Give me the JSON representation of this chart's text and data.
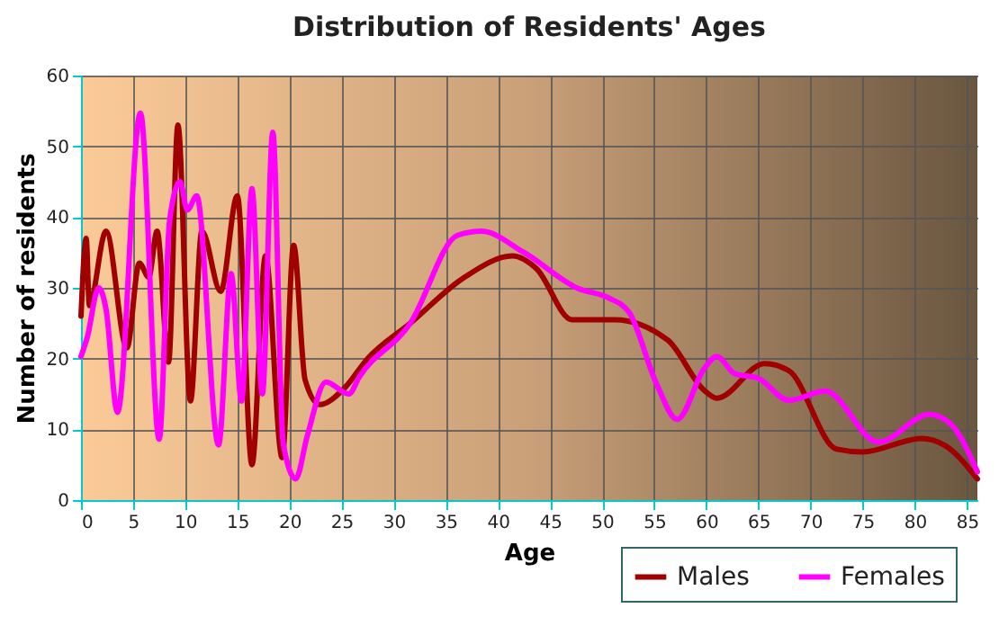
{
  "chart_data": {
    "type": "line",
    "title": "Distribution of Residents' Ages",
    "xlabel": "Age",
    "ylabel": "Number of residents",
    "xlim": [
      0,
      86
    ],
    "xticks": [
      0,
      5,
      10,
      15,
      20,
      25,
      30,
      35,
      40,
      45,
      50,
      55,
      60,
      65,
      70,
      75,
      80,
      85
    ],
    "ylim": [
      0,
      60
    ],
    "yticks": [
      0,
      10,
      20,
      30,
      40,
      50,
      60
    ],
    "grid": true,
    "legend": "bottom right",
    "series": [
      {
        "name": "Males",
        "color": "#a00000",
        "x": [
          0,
          0.5,
          0.8,
          2.4,
          4.4,
          5.6,
          6.5,
          7.3,
          8.4,
          9.3,
          10.5,
          11.6,
          13.4,
          15,
          16.4,
          17.7,
          19.3,
          20.4,
          21.5,
          22.9,
          25.2,
          27.5,
          31.6,
          36.7,
          41.4,
          43.7,
          47.1,
          51.2,
          56.3,
          59.8,
          61,
          65.6,
          67.9,
          72.5,
          75,
          80.6,
          82.9,
          86
        ],
        "values": [
          26,
          37,
          27.5,
          38,
          21.5,
          33.5,
          31.5,
          38,
          19.5,
          53,
          14,
          38,
          29.5,
          43,
          5,
          34.5,
          6,
          36,
          17,
          13.5,
          15.7,
          20,
          25,
          31.4,
          34.5,
          32.7,
          25.5,
          25.5,
          22.6,
          15.5,
          14.4,
          19.3,
          18.3,
          7.2,
          6.8,
          8.7,
          7.7,
          3
        ]
      },
      {
        "name": "Females",
        "color": "#ff00ff",
        "x": [
          0,
          0.6,
          1.7,
          2.4,
          3.5,
          5.7,
          7.5,
          8.5,
          9.5,
          10.2,
          11.1,
          13.2,
          14.4,
          15.4,
          16.4,
          17.4,
          18.4,
          19.4,
          20.6,
          21.7,
          23.5,
          25.7,
          26.7,
          31.6,
          36.1,
          38.4,
          42.5,
          47.7,
          50.6,
          52.6,
          55.2,
          57.2,
          59.8,
          61,
          62.7,
          65,
          67.9,
          71.4,
          76.5,
          81.4,
          83.4,
          86
        ],
        "values": [
          20.3,
          23,
          30,
          27,
          12.4,
          54.7,
          8.6,
          39.5,
          45,
          41,
          43,
          7.8,
          32,
          14,
          44,
          15,
          52,
          8,
          3,
          9,
          16.7,
          15,
          17.4,
          25,
          37.4,
          38,
          35,
          29.9,
          28.6,
          26.5,
          16.5,
          11.4,
          18.6,
          20.3,
          17.9,
          17.2,
          14.1,
          15.4,
          8.2,
          12.1,
          10.8,
          4
        ]
      }
    ]
  }
}
